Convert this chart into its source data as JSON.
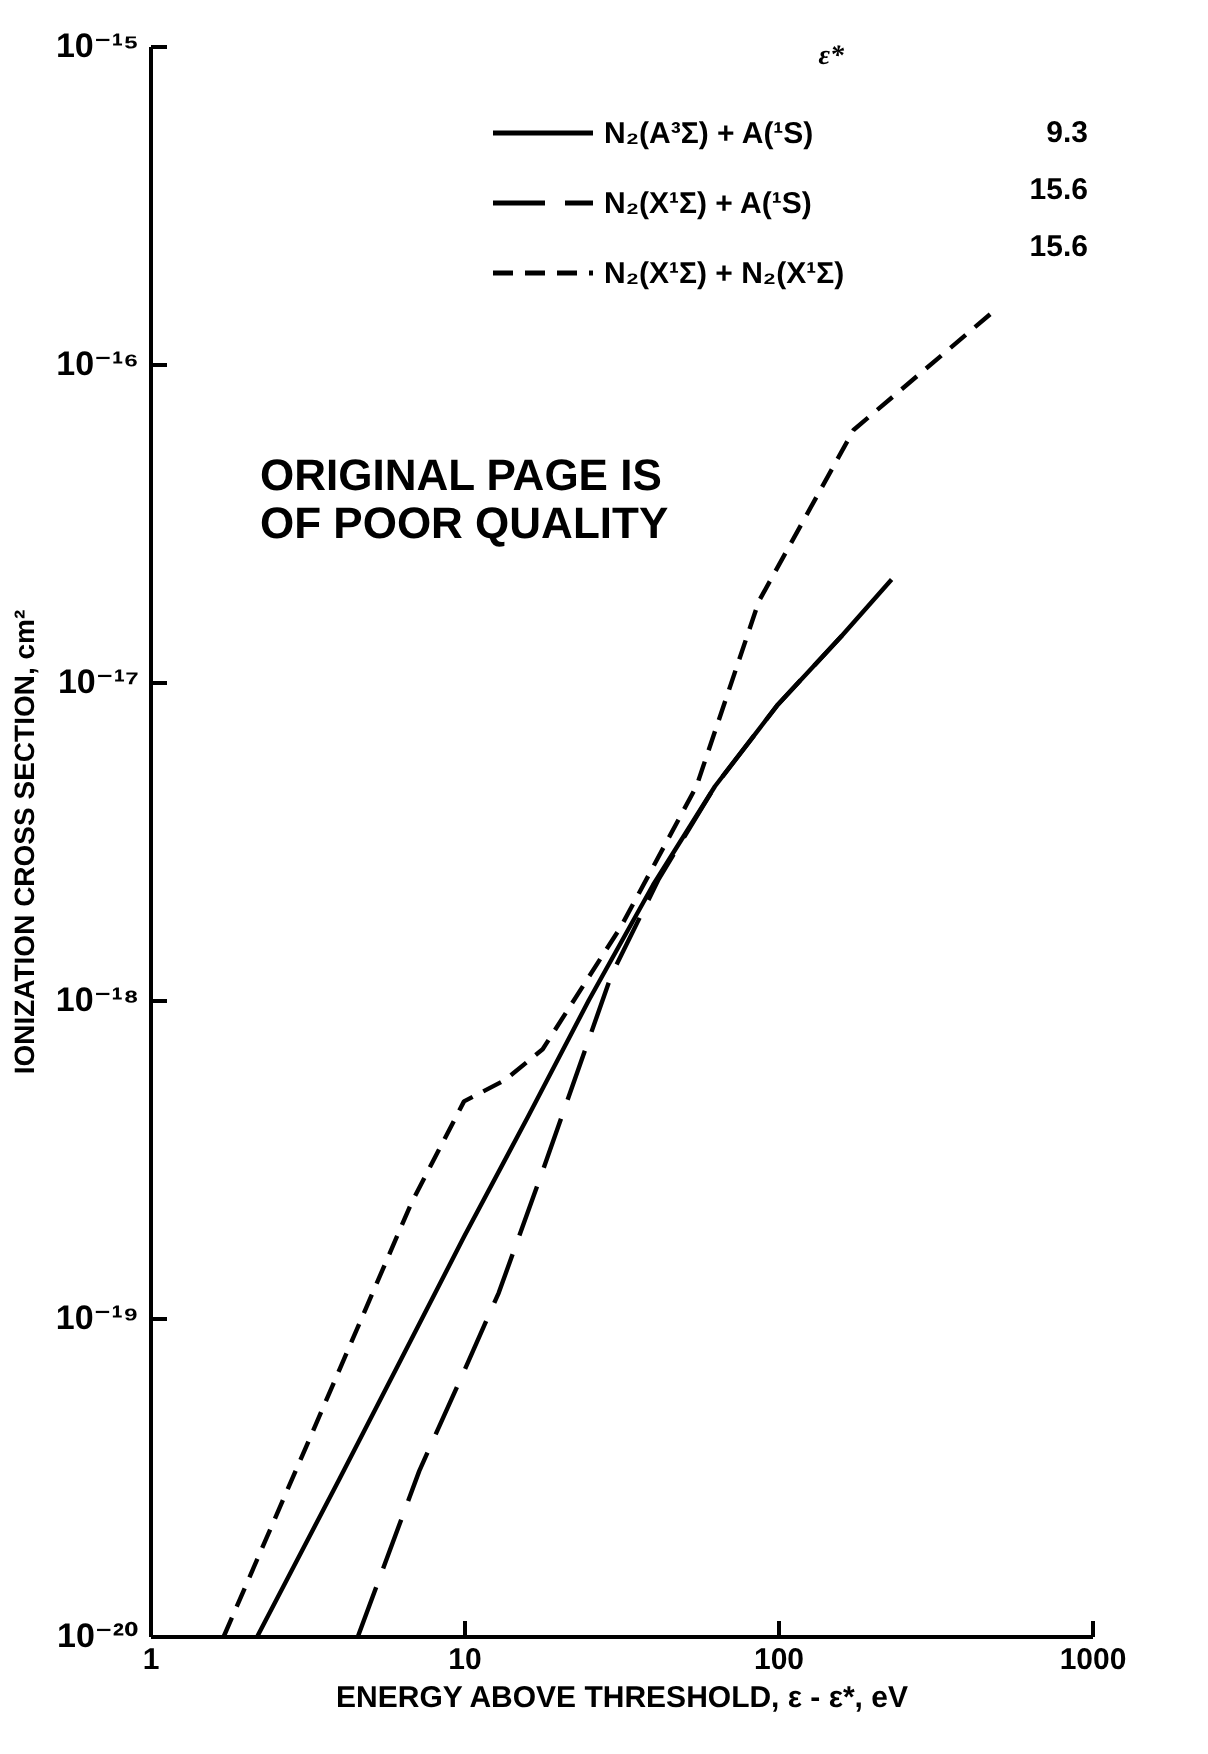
{
  "chart_data": {
    "type": "line",
    "xlabel": "ENERGY ABOVE THRESHOLD, ε - ε*, eV",
    "ylabel": "IONIZATION CROSS SECTION, cm²",
    "legend_title": "ε*",
    "legend": "top right",
    "log": "xy",
    "xlim": [
      1,
      1000
    ],
    "xticks": [
      1,
      10,
      100,
      1000
    ],
    "ylim": [
      1e-20,
      1e-15
    ],
    "yticks": [
      {
        "value": 1e-20,
        "label": "10⁻²⁰"
      },
      {
        "value": 1e-19,
        "label": "10⁻¹⁹"
      },
      {
        "value": 1e-18,
        "label": "10⁻¹⁸"
      },
      {
        "value": 1e-17,
        "label": "10⁻¹⁷"
      },
      {
        "value": 1e-16,
        "label": "10⁻¹⁶"
      },
      {
        "value": 1e-15,
        "label": "10⁻¹⁵"
      }
    ],
    "series": [
      {
        "name": "N₂(A³Σ) + A(¹S)",
        "color": "#000000",
        "line_style": "solid",
        "x": [
          2.2,
          4,
          6.3,
          10,
          16,
          25,
          40,
          63,
          100,
          160,
          230
        ],
        "values": [
          1e-20,
          3.1e-20,
          7.4e-20,
          1.8e-19,
          4.3e-19,
          1e-18,
          2.3e-18,
          4.7e-18,
          8.5e-18,
          1.4e-17,
          2.1e-17
        ]
      },
      {
        "name": "N₂(X¹Σ) + A(¹S)",
        "color": "#000000",
        "line_style": "dashed",
        "x": [
          4.6,
          7.2,
          10,
          12.9,
          17.8,
          29.5,
          41.7,
          63,
          100,
          160
        ],
        "values": [
          1e-20,
          3.3e-20,
          6.8e-20,
          1.2e-19,
          2.9e-19,
          1.2e-18,
          2.4e-18,
          4.7e-18,
          8.5e-18,
          1.4e-17
        ]
      },
      {
        "name": "N₂(X¹Σ) + N₂(X¹Σ)",
        "color": "#000000",
        "line_style": "dashed",
        "x": [
          1.72,
          3.3,
          6.8,
          10,
          13.5,
          17.8,
          31.6,
          55,
          87,
          174,
          500
        ],
        "values": [
          1e-20,
          4.4e-20,
          2.3e-19,
          4.8e-19,
          5.6e-19,
          7e-19,
          1.7e-18,
          4.7e-18,
          1.8e-17,
          6.2e-17,
          1.5e-16
        ]
      }
    ],
    "annotations": [
      "ORIGINAL PAGE IS OF POOR QUALITY",
      "9.3",
      "15.6",
      "15.6"
    ]
  }
}
